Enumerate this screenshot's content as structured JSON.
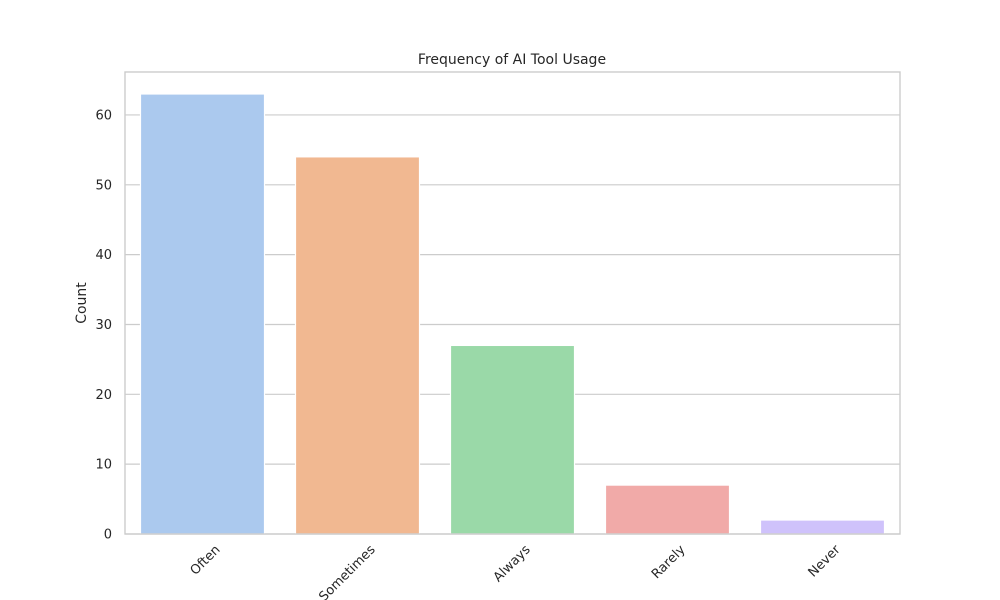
{
  "chart_data": {
    "type": "bar",
    "title": "Frequency of AI Tool Usage",
    "xlabel": "",
    "ylabel": "Count",
    "categories": [
      "Often",
      "Sometimes",
      "Always",
      "Rarely",
      "Never"
    ],
    "values": [
      63,
      54,
      27,
      7,
      2
    ],
    "colors": [
      "#abc9ee",
      "#f1b891",
      "#9ad9a8",
      "#f1aaa8",
      "#cfc2fb"
    ],
    "ylim": [
      0,
      66.15
    ],
    "yticks": [
      0,
      10,
      20,
      30,
      40,
      50,
      60
    ],
    "grid": true,
    "legend": "none"
  }
}
